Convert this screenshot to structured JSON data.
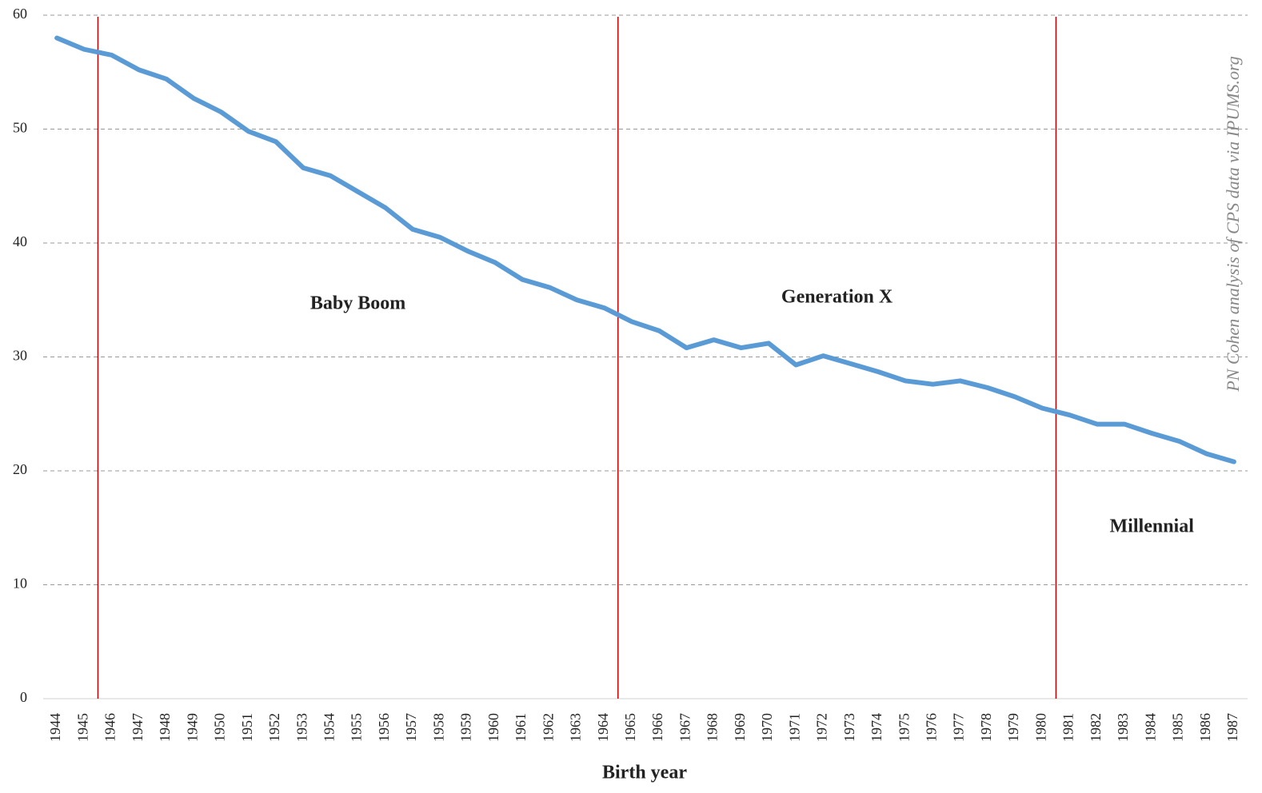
{
  "chart_data": {
    "type": "line",
    "x_label": "Birth year",
    "source": "PN Cohen analysis of CPS data via IPUMS.org",
    "categories": [
      "1944",
      "1945",
      "1946",
      "1947",
      "1948",
      "1949",
      "1950",
      "1951",
      "1952",
      "1953",
      "1954",
      "1955",
      "1956",
      "1957",
      "1958",
      "1959",
      "1960",
      "1961",
      "1962",
      "1963",
      "1964",
      "1965",
      "1966",
      "1967",
      "1968",
      "1969",
      "1970",
      "1971",
      "1972",
      "1973",
      "1974",
      "1975",
      "1976",
      "1977",
      "1978",
      "1979",
      "1980",
      "1981",
      "1982",
      "1983",
      "1984",
      "1985",
      "1986",
      "1987"
    ],
    "series": [
      {
        "color": "#5b9bd5",
        "values": [
          58.0,
          57.0,
          56.5,
          55.2,
          54.4,
          52.7,
          51.5,
          49.8,
          48.9,
          46.6,
          45.9,
          44.5,
          43.1,
          41.2,
          40.5,
          39.3,
          38.3,
          36.8,
          36.1,
          35.0,
          34.3,
          33.1,
          32.3,
          30.8,
          31.5,
          30.8,
          31.2,
          29.3,
          30.1,
          29.4,
          28.7,
          27.9,
          27.6,
          27.9,
          27.3,
          26.5,
          25.5,
          24.9,
          24.1,
          24.1,
          23.3,
          22.6,
          21.5,
          20.8
        ]
      }
    ],
    "generations": [
      {
        "label": "Baby Boom",
        "first_year": 1946
      },
      {
        "label": "Generation X",
        "first_year": 1965
      },
      {
        "label": "Millennial",
        "first_year": 1981
      }
    ],
    "divider_color": "#c00000",
    "ylim": [
      0,
      60
    ],
    "yticks": [
      0,
      10,
      20,
      30,
      40,
      50,
      60
    ],
    "grid": true
  }
}
